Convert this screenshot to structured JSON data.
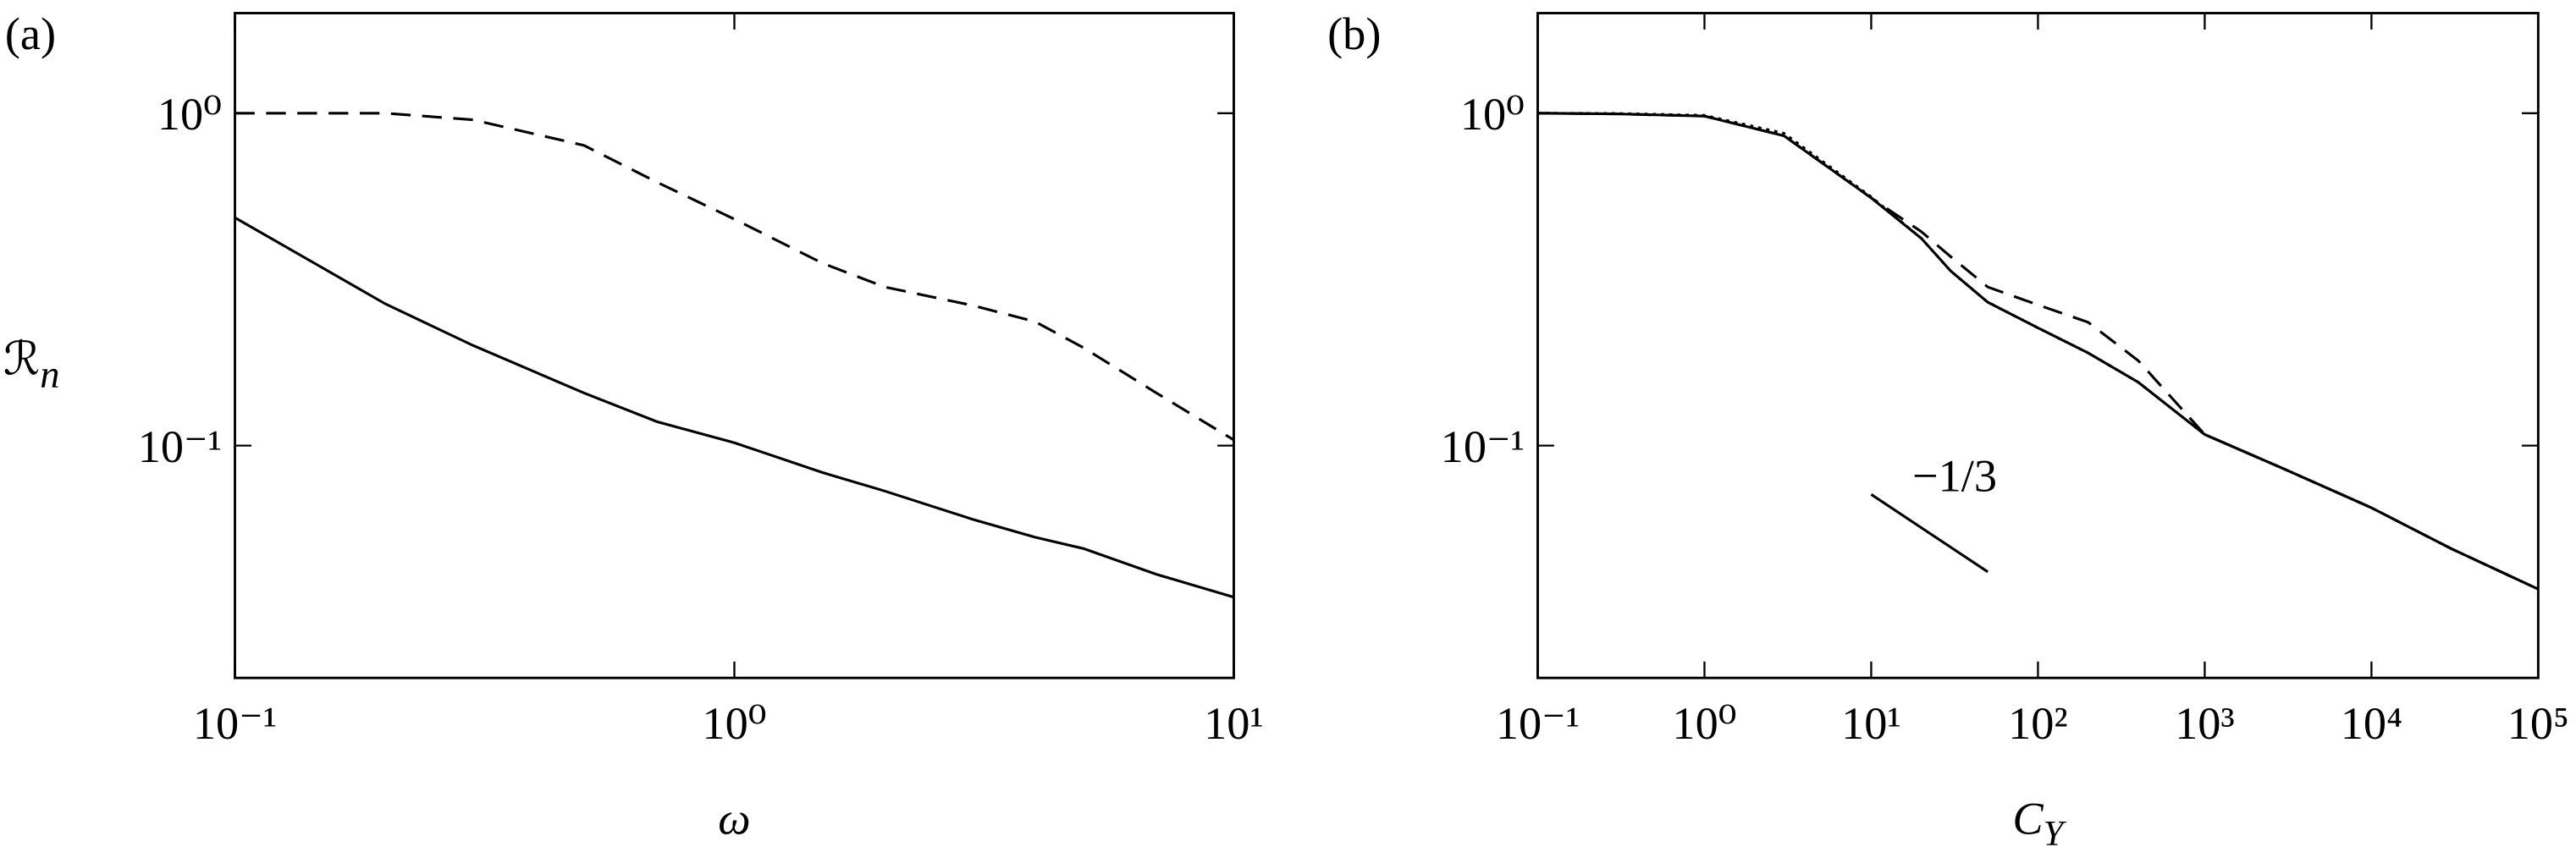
{
  "chart_data": [
    {
      "type": "line",
      "panel_label": "(a)",
      "xlabel": {
        "text": "ω"
      },
      "ylabel": {
        "text": "ℛ",
        "subscript": "n"
      },
      "xscale": "log",
      "yscale": "log",
      "xlim": [
        0.1,
        10
      ],
      "ylim": [
        0.02,
        2
      ],
      "xticks": [
        {
          "value": 0.1,
          "label": "10⁻¹"
        },
        {
          "value": 1,
          "label": "10⁰"
        },
        {
          "value": 10,
          "label": "10¹"
        }
      ],
      "yticks": [
        {
          "value": 0.1,
          "label": "10⁻¹"
        },
        {
          "value": 1,
          "label": "10⁰"
        }
      ],
      "x": [
        0.1,
        0.2,
        0.3,
        0.5,
        0.7,
        1,
        1.5,
        2,
        3,
        4,
        5,
        7,
        10
      ],
      "series": [
        {
          "style": "solid",
          "color": "#000000",
          "values": [
            0.485,
            0.267,
            0.2,
            0.144,
            0.118,
            0.102,
            0.083,
            0.073,
            0.06,
            0.053,
            0.049,
            0.041,
            0.035
          ]
        },
        {
          "style": "dashed",
          "color": "#000000",
          "values": [
            1,
            1,
            0.955,
            0.8,
            0.62,
            0.48,
            0.354,
            0.3,
            0.264,
            0.236,
            0.197,
            0.144,
            0.104
          ]
        }
      ]
    },
    {
      "type": "line",
      "panel_label": "(b)",
      "xlabel": {
        "text": "C",
        "subscript": "Y"
      },
      "xscale": "log",
      "yscale": "log",
      "xlim": [
        0.1,
        100000
      ],
      "ylim": [
        0.02,
        2
      ],
      "xticks": [
        {
          "value": 0.1,
          "label": "10⁻¹"
        },
        {
          "value": 1,
          "label": "10⁰"
        },
        {
          "value": 10,
          "label": "10¹"
        },
        {
          "value": 100,
          "label": "10²"
        },
        {
          "value": 1000,
          "label": "10³"
        },
        {
          "value": 10000,
          "label": "10⁴"
        },
        {
          "value": 100000,
          "label": "10⁵"
        }
      ],
      "yticks": [
        {
          "value": 0.1,
          "label": "10⁻¹"
        },
        {
          "value": 1,
          "label": "10⁰"
        }
      ],
      "x": [
        0.1,
        0.3,
        1,
        3,
        10,
        20,
        30,
        50,
        100,
        200,
        400,
        1000,
        3000,
        10000,
        30000,
        100000
      ],
      "series": [
        {
          "style": "solid",
          "color": "#000000",
          "values": [
            1,
            0.995,
            0.98,
            0.855,
            0.556,
            0.42,
            0.335,
            0.27,
            0.226,
            0.19,
            0.155,
            0.108,
            0.085,
            0.065,
            0.049,
            0.037
          ]
        },
        {
          "style": "dashed",
          "color": "#000000",
          "values": [
            1,
            0.995,
            0.98,
            0.855,
            0.556,
            0.44,
            0.37,
            0.3,
            0.265,
            0.235,
            0.18,
            0.108,
            0.085,
            0.065,
            0.049,
            0.037
          ]
        },
        {
          "style": "dotted",
          "color": "#000000",
          "values": [
            1,
            0.998,
            0.985,
            0.87,
            0.56,
            0.42,
            0.335,
            0.27,
            0.226,
            0.19,
            0.155,
            0.108,
            0.085,
            0.065,
            0.049,
            0.037
          ]
        }
      ],
      "slope_marker": {
        "label": "−1/3",
        "x": [
          10,
          50
        ],
        "y": [
          0.0713,
          0.0417
        ]
      }
    }
  ]
}
